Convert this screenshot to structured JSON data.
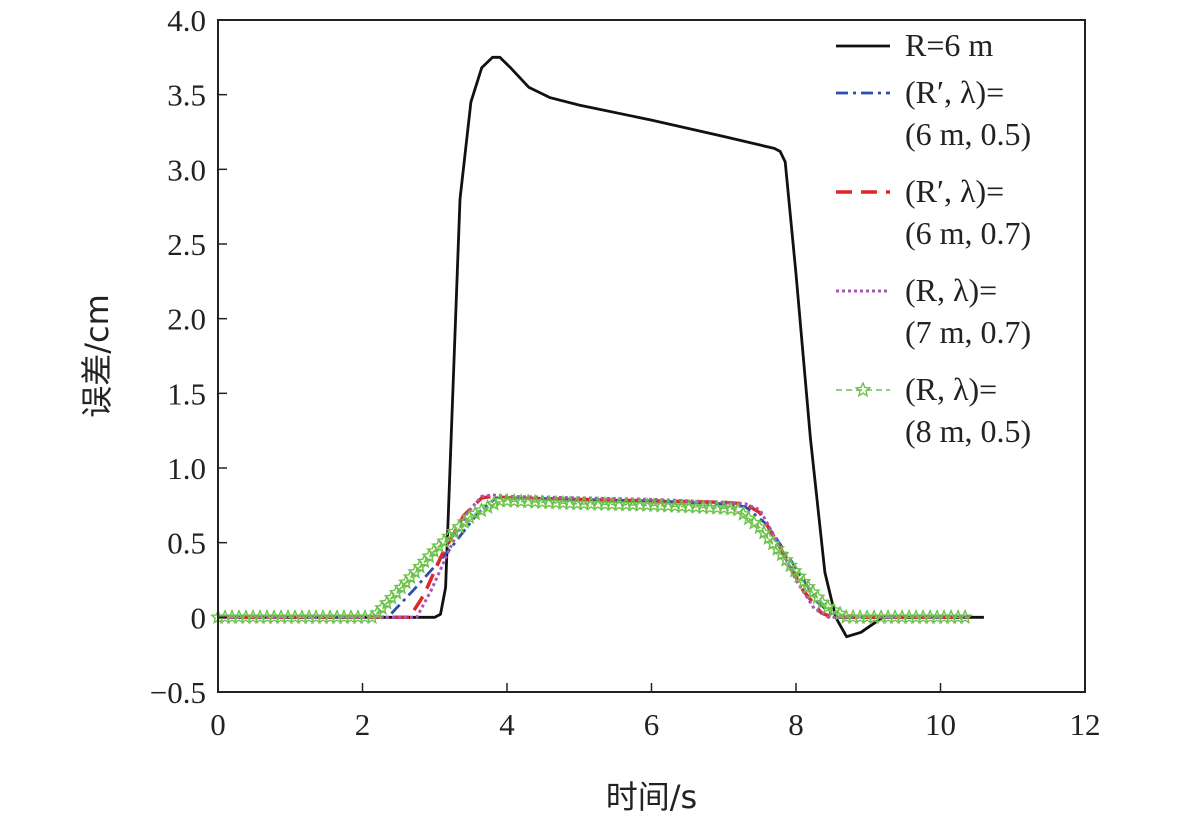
{
  "chart_data": {
    "type": "line",
    "title": "",
    "xlabel": "时间/s",
    "ylabel": "误差/cm",
    "xlim": [
      0,
      12
    ],
    "ylim": [
      -0.5,
      4.0
    ],
    "xticks": [
      0,
      2,
      4,
      6,
      8,
      10,
      12
    ],
    "yticks": [
      -0.5,
      0,
      0.5,
      1.0,
      1.5,
      2.0,
      2.5,
      3.0,
      3.5,
      4.0
    ],
    "xtick_labels": [
      "0",
      "2",
      "4",
      "6",
      "8",
      "10",
      "12"
    ],
    "ytick_labels": [
      "−0.5",
      "0",
      "0.5",
      "1.0",
      "1.5",
      "2.0",
      "2.5",
      "3.0",
      "3.5",
      "4.0"
    ],
    "grid": false,
    "legend_position": "top-right",
    "series": [
      {
        "name": "R=6 m",
        "legend_lines": [
          "R=6 m"
        ],
        "color": "#111111",
        "style": "solid",
        "x": [
          0,
          3.0,
          3.08,
          3.15,
          3.25,
          3.35,
          3.5,
          3.65,
          3.8,
          3.9,
          4.05,
          4.3,
          4.6,
          5.0,
          6.0,
          7.0,
          7.7,
          7.78,
          7.85,
          8.0,
          8.2,
          8.4,
          8.55,
          8.7,
          8.9,
          9.2,
          10.6
        ],
        "y": [
          0,
          0,
          0.02,
          0.2,
          1.5,
          2.8,
          3.45,
          3.68,
          3.75,
          3.75,
          3.68,
          3.55,
          3.48,
          3.43,
          3.33,
          3.22,
          3.14,
          3.12,
          3.05,
          2.3,
          1.2,
          0.3,
          0.0,
          -0.13,
          -0.1,
          0,
          0
        ]
      },
      {
        "name": "(R′, λ)=(6 m, 0.5)",
        "legend_lines": [
          "(R′, λ)=",
          "(6 m, 0.5)"
        ],
        "color": "#2b4fa8",
        "style": "dashdot",
        "x": [
          0,
          2.35,
          2.7,
          3.2,
          3.6,
          3.85,
          4.0,
          5.0,
          6.0,
          7.0,
          7.3,
          7.6,
          8.0,
          8.3,
          8.55,
          9.0,
          10.4
        ],
        "y": [
          0,
          0,
          0.18,
          0.45,
          0.7,
          0.8,
          0.8,
          0.79,
          0.78,
          0.76,
          0.74,
          0.62,
          0.33,
          0.1,
          0.0,
          0,
          0
        ]
      },
      {
        "name": "(R′, λ)=(6 m, 0.7)",
        "legend_lines": [
          "(R′, λ)=",
          "(6 m, 0.7)"
        ],
        "color": "#e0262b",
        "style": "dashed",
        "x": [
          0,
          2.65,
          2.85,
          3.1,
          3.4,
          3.65,
          3.8,
          4.0,
          5.0,
          6.0,
          7.0,
          7.3,
          7.5,
          7.8,
          8.1,
          8.35,
          8.5,
          8.8,
          10.4
        ],
        "y": [
          0,
          0,
          0.15,
          0.42,
          0.68,
          0.8,
          0.81,
          0.8,
          0.79,
          0.78,
          0.77,
          0.76,
          0.7,
          0.45,
          0.18,
          0.03,
          0.0,
          0,
          0
        ]
      },
      {
        "name": "(R, λ)=(7 m, 0.7)",
        "legend_lines": [
          "(R, λ)=",
          "(7 m, 0.7)"
        ],
        "color": "#a855b5",
        "style": "dotted",
        "x": [
          0,
          2.75,
          2.95,
          3.2,
          3.45,
          3.65,
          3.8,
          4.0,
          5.0,
          6.0,
          7.0,
          7.3,
          7.5,
          7.75,
          8.0,
          8.25,
          8.45,
          8.7,
          10.4
        ],
        "y": [
          0,
          0,
          0.18,
          0.45,
          0.7,
          0.81,
          0.82,
          0.81,
          0.8,
          0.79,
          0.77,
          0.76,
          0.72,
          0.5,
          0.25,
          0.06,
          0.0,
          0,
          0
        ]
      },
      {
        "name": "(R, λ)=(8 m, 0.5)",
        "legend_lines": [
          "(R, λ)=",
          "(8 m, 0.5)"
        ],
        "color": "#6cc24a",
        "style": "dashed-star",
        "x": [
          0,
          2.15,
          2.5,
          3.0,
          3.5,
          3.9,
          4.0,
          5.0,
          6.0,
          7.0,
          7.2,
          7.5,
          7.8,
          8.1,
          8.4,
          8.7,
          8.9,
          10.4
        ],
        "y": [
          0,
          0,
          0.18,
          0.45,
          0.68,
          0.78,
          0.78,
          0.76,
          0.75,
          0.73,
          0.72,
          0.6,
          0.42,
          0.24,
          0.08,
          0.0,
          0,
          0
        ]
      }
    ]
  }
}
